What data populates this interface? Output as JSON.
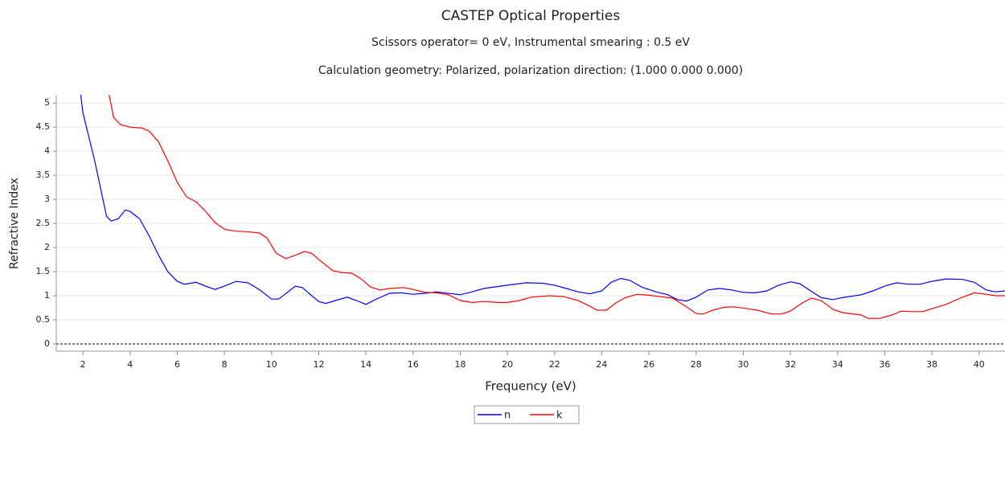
{
  "chart_data": {
    "type": "line",
    "title": "CASTEP Optical Properties",
    "subtitle": "Scissors operator= 0 eV, Instrumental smearing : 0.5 eV",
    "subtitle2": "Calculation geometry: Polarized, polarization direction: (1.000 0.000 0.000)",
    "x_label": "Frequency (eV)",
    "y_label": "Refractive Index",
    "xlim": [
      0.87,
      41.1
    ],
    "ylim": [
      -0.15,
      5.17
    ],
    "xticks": [
      2,
      4,
      6,
      8,
      10,
      12,
      14,
      16,
      18,
      20,
      22,
      24,
      26,
      28,
      30,
      32,
      34,
      36,
      38,
      40
    ],
    "yticks": [
      0,
      0.5,
      1,
      1.5,
      2,
      2.5,
      3,
      3.5,
      4,
      4.5,
      5
    ],
    "grid": true,
    "legend": "bottom",
    "series": [
      {
        "name": "n",
        "color": "#0000ff",
        "x": [
          1.9,
          2,
          2.5,
          3,
          3.2,
          3.5,
          3.8,
          4,
          4.4,
          4.8,
          5.2,
          5.6,
          6,
          6.3,
          6.8,
          7.2,
          7.6,
          8,
          8.5,
          9,
          9.5,
          10,
          10.3,
          10.7,
          11,
          11.3,
          11.7,
          12,
          12.3,
          12.7,
          13.2,
          13.6,
          14,
          14.4,
          15,
          15.5,
          16,
          16.5,
          17,
          17.5,
          18,
          18.5,
          19,
          20,
          20.8,
          21.5,
          22,
          22.5,
          23,
          23.5,
          24,
          24.4,
          24.8,
          25.2,
          25.7,
          26.3,
          26.8,
          27.2,
          27.6,
          28,
          28.5,
          29,
          29.5,
          30,
          30.5,
          31,
          31.5,
          32,
          32.4,
          32.8,
          33.3,
          33.8,
          34.2,
          35,
          35.5,
          36,
          36.5,
          37,
          37.5,
          38,
          38.6,
          39.3,
          39.8,
          40.3,
          40.7,
          41.1
        ],
        "values": [
          5.2,
          4.8,
          3.8,
          2.65,
          2.55,
          2.6,
          2.78,
          2.75,
          2.6,
          2.25,
          1.85,
          1.5,
          1.3,
          1.24,
          1.28,
          1.2,
          1.13,
          1.2,
          1.3,
          1.27,
          1.12,
          0.93,
          0.93,
          1.08,
          1.2,
          1.17,
          1.0,
          0.88,
          0.84,
          0.9,
          0.97,
          0.9,
          0.82,
          0.92,
          1.05,
          1.06,
          1.03,
          1.05,
          1.08,
          1.05,
          1.02,
          1.08,
          1.15,
          1.22,
          1.27,
          1.26,
          1.22,
          1.15,
          1.08,
          1.04,
          1.1,
          1.28,
          1.36,
          1.32,
          1.18,
          1.08,
          1.02,
          0.92,
          0.89,
          0.97,
          1.12,
          1.15,
          1.12,
          1.07,
          1.06,
          1.1,
          1.22,
          1.29,
          1.25,
          1.12,
          0.96,
          0.92,
          0.96,
          1.02,
          1.1,
          1.2,
          1.27,
          1.24,
          1.24,
          1.3,
          1.35,
          1.34,
          1.28,
          1.12,
          1.08,
          1.1
        ]
      },
      {
        "name": "k",
        "color": "#ff0000",
        "x": [
          3.1,
          3.3,
          3.6,
          4,
          4.5,
          4.8,
          5.2,
          5.6,
          6,
          6.4,
          6.8,
          7.2,
          7.6,
          8,
          8.5,
          9,
          9.5,
          9.8,
          10.2,
          10.6,
          11,
          11.4,
          11.7,
          12,
          12.6,
          13,
          13.4,
          13.8,
          14.2,
          14.6,
          15,
          15.6,
          16,
          16.5,
          17,
          17.5,
          18,
          18.5,
          19,
          19.6,
          20,
          20.5,
          21,
          21.8,
          22.4,
          23,
          23.5,
          23.8,
          24.2,
          24.6,
          25,
          25.5,
          26,
          26.5,
          27,
          27.5,
          28,
          28.3,
          28.7,
          29.2,
          29.6,
          30.2,
          30.6,
          31.2,
          31.6,
          32,
          32.5,
          32.9,
          33.3,
          33.8,
          34.2,
          35,
          35.3,
          35.8,
          36.3,
          36.7,
          37.2,
          37.6,
          38,
          38.6,
          39.2,
          39.8,
          40.3,
          40.7,
          41.1
        ],
        "values": [
          5.2,
          4.7,
          4.55,
          4.5,
          4.48,
          4.42,
          4.2,
          3.8,
          3.35,
          3.05,
          2.95,
          2.75,
          2.52,
          2.38,
          2.34,
          2.33,
          2.3,
          2.2,
          1.88,
          1.77,
          1.84,
          1.92,
          1.88,
          1.75,
          1.52,
          1.48,
          1.47,
          1.35,
          1.18,
          1.12,
          1.15,
          1.17,
          1.13,
          1.07,
          1.06,
          1.02,
          0.9,
          0.86,
          0.88,
          0.86,
          0.86,
          0.9,
          0.97,
          1.0,
          0.98,
          0.9,
          0.78,
          0.7,
          0.7,
          0.85,
          0.96,
          1.03,
          1.01,
          0.98,
          0.95,
          0.8,
          0.63,
          0.62,
          0.7,
          0.76,
          0.77,
          0.73,
          0.7,
          0.62,
          0.62,
          0.68,
          0.85,
          0.95,
          0.9,
          0.72,
          0.65,
          0.6,
          0.53,
          0.53,
          0.6,
          0.68,
          0.67,
          0.67,
          0.73,
          0.82,
          0.95,
          1.06,
          1.03,
          1.0,
          1.0
        ]
      }
    ]
  }
}
